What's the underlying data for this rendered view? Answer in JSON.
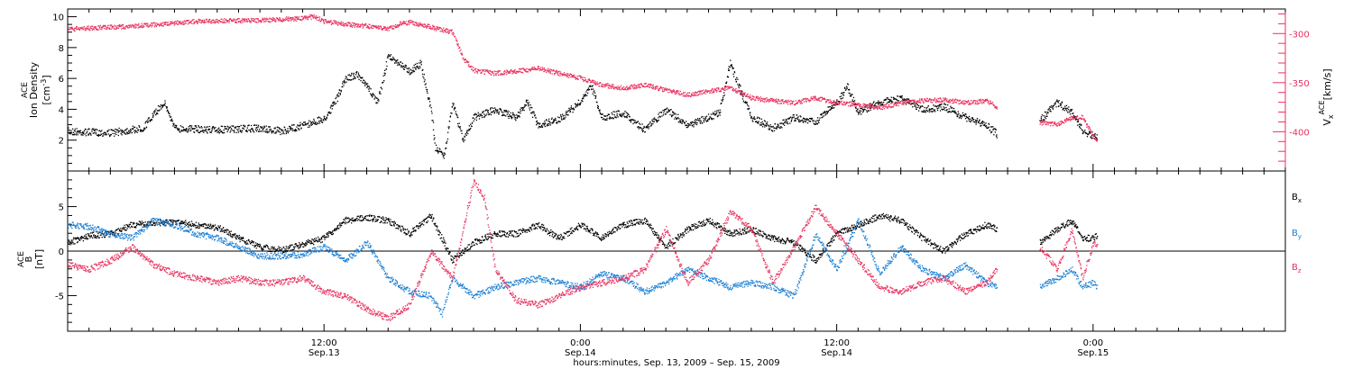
{
  "chart_data": [
    {
      "type": "scatter",
      "panel": "top",
      "ylabel_left": {
        "line1": "ACE",
        "line2": "Ion Density",
        "unit_base": "[cm",
        "unit_exp": "-3",
        "unit_close": "]"
      },
      "ylabel_right": {
        "component": "V",
        "sub": "x",
        "sup": "ACE",
        "unit": "[km/s]"
      },
      "left_ticks": [
        "2",
        "4",
        "6",
        "8",
        "10"
      ],
      "right_ticks": [
        "-300",
        "-350",
        "-400"
      ],
      "ylim_left": [
        0,
        10.5
      ],
      "ylim_right": [
        -440,
        -275
      ],
      "colors": {
        "density": "#000000",
        "velocity": "#e8325f"
      },
      "series": [
        {
          "key": "density",
          "points": [
            [
              0,
              2.6
            ],
            [
              2,
              2.5
            ],
            [
              3.5,
              2.8
            ],
            [
              4.5,
              4.5
            ],
            [
              5,
              2.8
            ],
            [
              7,
              2.7
            ],
            [
              9,
              2.8
            ],
            [
              10,
              2.6
            ],
            [
              11,
              3.0
            ],
            [
              12,
              3.4
            ],
            [
              12.5,
              4.5
            ],
            [
              13,
              6.0
            ],
            [
              13.5,
              6.3
            ],
            [
              14,
              5.5
            ],
            [
              14.5,
              4.5
            ],
            [
              15,
              7.5
            ],
            [
              15.5,
              7.0
            ],
            [
              16,
              6.5
            ],
            [
              16.5,
              7.0
            ],
            [
              17,
              4.0
            ],
            [
              17.2,
              1.5
            ],
            [
              17.6,
              1.0
            ],
            [
              18,
              4.5
            ],
            [
              18.5,
              2.0
            ],
            [
              19,
              3.5
            ],
            [
              20,
              4.0
            ],
            [
              21,
              3.5
            ],
            [
              21.5,
              4.5
            ],
            [
              22,
              3.0
            ],
            [
              23,
              3.4
            ],
            [
              24,
              4.5
            ],
            [
              24.5,
              5.5
            ],
            [
              25,
              3.5
            ],
            [
              26,
              3.8
            ],
            [
              27,
              2.7
            ],
            [
              28,
              4.0
            ],
            [
              29,
              3.0
            ],
            [
              30,
              3.5
            ],
            [
              30.5,
              3.8
            ],
            [
              31,
              7.0
            ],
            [
              31.5,
              5.2
            ],
            [
              32,
              3.5
            ],
            [
              33,
              2.8
            ],
            [
              34,
              3.5
            ],
            [
              35,
              3.2
            ],
            [
              36,
              4.5
            ],
            [
              36.5,
              5.5
            ],
            [
              37,
              3.8
            ],
            [
              38,
              4.5
            ],
            [
              39,
              4.7
            ],
            [
              40,
              4.0
            ],
            [
              41,
              4.2
            ],
            [
              42,
              3.5
            ],
            [
              43,
              3.0
            ],
            [
              43.5,
              2.4
            ],
            [
              45.5,
              3.3
            ],
            [
              46.3,
              4.5
            ],
            [
              47,
              3.8
            ],
            [
              47.5,
              2.6
            ],
            [
              48,
              2.3
            ],
            [
              48.2,
              2.2
            ]
          ]
        },
        {
          "key": "velocity",
          "points": [
            [
              0,
              -295
            ],
            [
              3,
              -292
            ],
            [
              6,
              -287
            ],
            [
              9,
              -286
            ],
            [
              11,
              -284
            ],
            [
              11.5,
              -282
            ],
            [
              12,
              -287
            ],
            [
              13,
              -290
            ],
            [
              14,
              -292
            ],
            [
              15,
              -295
            ],
            [
              15.5,
              -290
            ],
            [
              16,
              -288
            ],
            [
              17,
              -293
            ],
            [
              18,
              -298
            ],
            [
              18.5,
              -325
            ],
            [
              19,
              -337
            ],
            [
              20,
              -340
            ],
            [
              21,
              -338
            ],
            [
              22,
              -335
            ],
            [
              23,
              -340
            ],
            [
              24,
              -345
            ],
            [
              25,
              -352
            ],
            [
              26,
              -355
            ],
            [
              27,
              -352
            ],
            [
              28,
              -357
            ],
            [
              29,
              -362
            ],
            [
              30,
              -358
            ],
            [
              31,
              -355
            ],
            [
              32,
              -365
            ],
            [
              33,
              -368
            ],
            [
              34,
              -370
            ],
            [
              35,
              -365
            ],
            [
              36,
              -370
            ],
            [
              37,
              -372
            ],
            [
              38,
              -375
            ],
            [
              39,
              -370
            ],
            [
              40,
              -368
            ],
            [
              41,
              -367
            ],
            [
              42,
              -370
            ],
            [
              43,
              -368
            ],
            [
              43.5,
              -375
            ],
            [
              45.5,
              -390
            ],
            [
              46.3,
              -392
            ],
            [
              47,
              -385
            ],
            [
              47.5,
              -385
            ],
            [
              48,
              -405
            ],
            [
              48.2,
              -408
            ]
          ]
        }
      ]
    },
    {
      "type": "scatter",
      "panel": "bottom",
      "ylabel_left": {
        "line1": "ACE",
        "line2": "B",
        "unit": "[nT]"
      },
      "left_ticks": [
        "-5",
        "0",
        "5"
      ],
      "ylim": [
        -9,
        9
      ],
      "legend_placement": "right",
      "colors": {
        "bx": "#000000",
        "by": "#1a7fd4",
        "bz": "#e8325f"
      },
      "legend": [
        {
          "key": "bx",
          "base": "B",
          "sub": "x"
        },
        {
          "key": "by",
          "base": "B",
          "sub": "y"
        },
        {
          "key": "bz",
          "base": "B",
          "sub": "z"
        }
      ],
      "series": [
        {
          "key": "bx",
          "points": [
            [
              0,
              1.0
            ],
            [
              1,
              1.8
            ],
            [
              2,
              2.0
            ],
            [
              3,
              3.0
            ],
            [
              4,
              3.2
            ],
            [
              5,
              3.3
            ],
            [
              6,
              3.0
            ],
            [
              7,
              2.7
            ],
            [
              8,
              1.5
            ],
            [
              9,
              0.5
            ],
            [
              10,
              0.2
            ],
            [
              11,
              0.8
            ],
            [
              12,
              1.5
            ],
            [
              12.5,
              2.5
            ],
            [
              13,
              3.5
            ],
            [
              14,
              3.8
            ],
            [
              15,
              3.5
            ],
            [
              16,
              2.0
            ],
            [
              17,
              4.0
            ],
            [
              18,
              -1.0
            ],
            [
              19,
              1.0
            ],
            [
              20,
              2.0
            ],
            [
              21,
              2.0
            ],
            [
              22,
              3.0
            ],
            [
              23,
              1.5
            ],
            [
              24,
              3.0
            ],
            [
              25,
              1.5
            ],
            [
              26,
              3.0
            ],
            [
              27,
              3.5
            ],
            [
              28,
              0.5
            ],
            [
              29,
              2.5
            ],
            [
              30,
              3.5
            ],
            [
              31,
              2.0
            ],
            [
              32,
              2.5
            ],
            [
              33,
              1.5
            ],
            [
              34,
              1.0
            ],
            [
              35,
              -1.0
            ],
            [
              36,
              2.0
            ],
            [
              37,
              3.0
            ],
            [
              38,
              4.0
            ],
            [
              39,
              3.5
            ],
            [
              40,
              1.5
            ],
            [
              41,
              0.0
            ],
            [
              42,
              2.0
            ],
            [
              43,
              3.0
            ],
            [
              43.5,
              2.5
            ],
            [
              45.5,
              1.0
            ],
            [
              46.3,
              2.5
            ],
            [
              47,
              3.5
            ],
            [
              47.5,
              1.5
            ],
            [
              48,
              1.5
            ],
            [
              48.2,
              1.8
            ]
          ]
        },
        {
          "key": "by",
          "points": [
            [
              0,
              3.0
            ],
            [
              1,
              2.8
            ],
            [
              2,
              2.0
            ],
            [
              3,
              1.5
            ],
            [
              4,
              3.5
            ],
            [
              5,
              3.0
            ],
            [
              6,
              2.0
            ],
            [
              7,
              1.5
            ],
            [
              8,
              0.5
            ],
            [
              9,
              -0.5
            ],
            [
              10,
              -0.5
            ],
            [
              11,
              -0.3
            ],
            [
              12,
              0.5
            ],
            [
              13,
              -1.0
            ],
            [
              14,
              1.0
            ],
            [
              15,
              -3.0
            ],
            [
              16,
              -4.5
            ],
            [
              17,
              -5.0
            ],
            [
              17.5,
              -7.0
            ],
            [
              18,
              -3.0
            ],
            [
              19,
              -5.0
            ],
            [
              20,
              -4.0
            ],
            [
              21,
              -3.5
            ],
            [
              22,
              -3.0
            ],
            [
              23,
              -3.5
            ],
            [
              24,
              -4.0
            ],
            [
              25,
              -2.5
            ],
            [
              26,
              -3.0
            ],
            [
              27,
              -4.5
            ],
            [
              28,
              -3.5
            ],
            [
              29,
              -2.0
            ],
            [
              30,
              -3.0
            ],
            [
              31,
              -4.0
            ],
            [
              32,
              -3.5
            ],
            [
              33,
              -4.0
            ],
            [
              34,
              -5.0
            ],
            [
              35,
              2.0
            ],
            [
              36,
              -2.0
            ],
            [
              37,
              3.5
            ],
            [
              38,
              -2.5
            ],
            [
              39,
              0.5
            ],
            [
              40,
              -2.0
            ],
            [
              41,
              -3.0
            ],
            [
              42,
              -1.5
            ],
            [
              43,
              -3.5
            ],
            [
              43.5,
              -4.0
            ],
            [
              45.5,
              -4.0
            ],
            [
              46.3,
              -3.0
            ],
            [
              47,
              -2.0
            ],
            [
              47.5,
              -4.0
            ],
            [
              48,
              -3.5
            ],
            [
              48.2,
              -4.0
            ]
          ]
        },
        {
          "key": "bz",
          "points": [
            [
              0,
              -1.5
            ],
            [
              1,
              -2.0
            ],
            [
              2,
              -1.0
            ],
            [
              3,
              0.5
            ],
            [
              4,
              -1.5
            ],
            [
              5,
              -2.5
            ],
            [
              6,
              -3.0
            ],
            [
              7,
              -3.5
            ],
            [
              8,
              -3.0
            ],
            [
              9,
              -3.5
            ],
            [
              10,
              -3.5
            ],
            [
              11,
              -3.0
            ],
            [
              12,
              -4.5
            ],
            [
              13,
              -5.0
            ],
            [
              14,
              -6.5
            ],
            [
              15,
              -7.5
            ],
            [
              16,
              -6.0
            ],
            [
              17,
              0.0
            ],
            [
              18,
              -3.0
            ],
            [
              19,
              8.0
            ],
            [
              19.5,
              6.0
            ],
            [
              20,
              -2.0
            ],
            [
              21,
              -5.5
            ],
            [
              22,
              -6.0
            ],
            [
              23,
              -5.0
            ],
            [
              24,
              -4.0
            ],
            [
              25,
              -3.5
            ],
            [
              26,
              -3.0
            ],
            [
              27,
              -2.0
            ],
            [
              28,
              2.5
            ],
            [
              29,
              -3.5
            ],
            [
              30,
              -1.0
            ],
            [
              31,
              4.5
            ],
            [
              32,
              2.5
            ],
            [
              33,
              -3.5
            ],
            [
              34,
              0.5
            ],
            [
              35,
              5.0
            ],
            [
              36,
              2.0
            ],
            [
              37,
              -1.0
            ],
            [
              38,
              -4.0
            ],
            [
              39,
              -4.5
            ],
            [
              40,
              -3.5
            ],
            [
              41,
              -3.0
            ],
            [
              42,
              -4.5
            ],
            [
              43,
              -3.5
            ],
            [
              43.5,
              -2.0
            ],
            [
              45.5,
              0.5
            ],
            [
              46.3,
              -2.0
            ],
            [
              47,
              2.5
            ],
            [
              47.5,
              -3.0
            ],
            [
              48,
              1.0
            ],
            [
              48.2,
              0.5
            ]
          ]
        }
      ]
    }
  ],
  "x_axis": {
    "ticks": [
      {
        "hours": 12,
        "time": "12:00",
        "date": "Sep.13"
      },
      {
        "hours": 24,
        "time": "0:00",
        "date": "Sep.14"
      },
      {
        "hours": 36,
        "time": "12:00",
        "date": "Sep.14"
      },
      {
        "hours": 48,
        "time": "0:00",
        "date": "Sep.15"
      }
    ],
    "title": "hours:minutes, Sep. 13, 2009 – Sep. 15, 2009"
  }
}
